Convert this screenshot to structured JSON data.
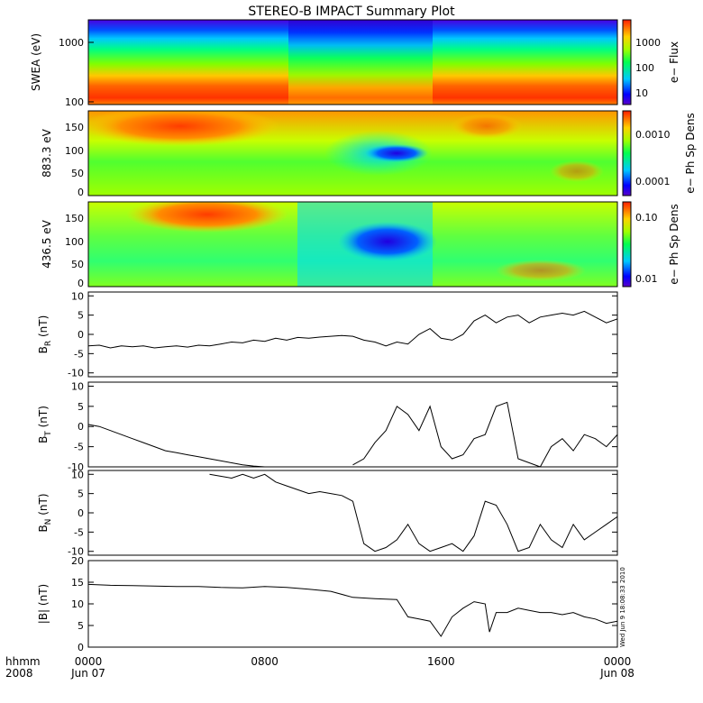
{
  "chart_data": {
    "title": "STEREO-B IMPACT Summary Plot",
    "type": "multi-panel",
    "x_axis": {
      "label_line1": "hhmm",
      "label_line2": "2008",
      "range_hours": [
        0,
        24
      ],
      "ticks": [
        {
          "hour": 0,
          "line1": "0000",
          "line2": "Jun 07"
        },
        {
          "hour": 8,
          "line1": "0800",
          "line2": ""
        },
        {
          "hour": 16,
          "line1": "1600",
          "line2": ""
        },
        {
          "hour": 24,
          "line1": "0000",
          "line2": "Jun 08"
        }
      ]
    },
    "timestamp": "Wed Jun 9 18:08:33 2010",
    "panels": [
      {
        "id": "swea",
        "type": "heatmap",
        "ylabel": "SWEA (eV)",
        "yscale": "log",
        "ylim": [
          100,
          2000
        ],
        "yticks": [
          "1000",
          "100"
        ],
        "colorbar_label": "e− Flux",
        "colorbar_ticks": [
          "1000",
          "100",
          "10"
        ],
        "description_bands": "high flux (red) below ~200 eV, green ~400-800 eV, blue above ~1500 eV; reduced flux between 08:00 and 15:30"
      },
      {
        "id": "pad883",
        "type": "heatmap",
        "ylabel": "883.3 eV",
        "ylim": [
          0,
          180
        ],
        "yticks": [
          "150",
          "100",
          "50",
          "0"
        ],
        "colorbar_label": "e− Ph Sp Dens",
        "colorbar_ticks": [
          "0.0010",
          "0.0001"
        ]
      },
      {
        "id": "pad436",
        "type": "heatmap",
        "ylabel": "436.5 eV",
        "ylim": [
          0,
          180
        ],
        "yticks": [
          "150",
          "100",
          "50",
          "0"
        ],
        "colorbar_label": "e− Ph Sp Dens",
        "colorbar_ticks": [
          "0.10",
          "0.01"
        ]
      },
      {
        "id": "br",
        "type": "line",
        "ylabel_main": "B",
        "ylabel_sub": "R",
        "ylabel_unit": " (nT)",
        "ylim": [
          -11,
          11
        ],
        "yticks": [
          10,
          5,
          0,
          -5,
          -10
        ],
        "x_hours": [
          0,
          0.5,
          1,
          1.5,
          2,
          2.5,
          3,
          3.5,
          4,
          4.5,
          5,
          5.5,
          6,
          6.5,
          7,
          7.5,
          8,
          8.5,
          9,
          9.5,
          10,
          10.5,
          11,
          11.5,
          12,
          12.5,
          13,
          13.5,
          14,
          14.5,
          15,
          15.5,
          16,
          16.5,
          17,
          17.5,
          18,
          18.5,
          19,
          19.5,
          20,
          20.5,
          21,
          21.5,
          22,
          22.5,
          23,
          23.5,
          24
        ],
        "values": [
          -3,
          -2.8,
          -3.5,
          -3,
          -3.2,
          -3,
          -3.5,
          -3.2,
          -3,
          -3.3,
          -2.8,
          -3,
          -2.5,
          -2,
          -2.2,
          -1.5,
          -1.8,
          -1,
          -1.5,
          -0.8,
          -1,
          -0.7,
          -0.5,
          -0.3,
          -0.5,
          -1.5,
          -2,
          -3,
          -2,
          -2.5,
          0,
          1.5,
          -1,
          -1.5,
          0,
          3.5,
          5,
          3,
          4.5,
          5,
          3,
          4.5,
          5,
          5.5,
          5,
          6,
          4.5,
          3,
          4
        ]
      },
      {
        "id": "bt",
        "type": "line",
        "ylabel_main": "B",
        "ylabel_sub": "T",
        "ylabel_unit": " (nT)",
        "ylim": [
          -10,
          11
        ],
        "yticks": [
          10,
          5,
          0,
          -5,
          -10
        ],
        "x_hours": [
          0,
          0.5,
          1,
          1.5,
          2,
          2.5,
          3,
          3.5,
          4,
          4.5,
          5,
          5.5,
          6,
          6.5,
          7,
          7.5,
          8,
          12,
          12.5,
          13,
          13.5,
          14,
          14.5,
          15,
          15.5,
          16,
          16.5,
          17,
          17.5,
          18,
          18.5,
          19,
          19.5,
          20,
          20.5,
          21,
          21.5,
          22,
          22.5,
          23,
          23.5,
          24
        ],
        "values": [
          0.5,
          0,
          -1,
          -2,
          -3,
          -4,
          -5,
          -6,
          -6.5,
          -7,
          -7.5,
          -8,
          -8.5,
          -9,
          -9.5,
          -9.8,
          -10,
          -9.5,
          -8,
          -4,
          -1,
          5,
          3,
          -1,
          5,
          -5,
          -8,
          -7,
          -3,
          -2,
          5,
          6,
          -8,
          -9,
          -10,
          -5,
          -3,
          -6,
          -2,
          -3,
          -5,
          -2
        ]
      },
      {
        "id": "bn",
        "type": "line",
        "ylabel_main": "B",
        "ylabel_sub": "N",
        "ylabel_unit": " (nT)",
        "ylim": [
          -11,
          11
        ],
        "yticks": [
          10,
          5,
          0,
          -5,
          -10
        ],
        "x_hours": [
          5.5,
          6,
          6.5,
          7,
          7.5,
          8,
          8.5,
          9,
          9.5,
          10,
          10.5,
          11,
          11.5,
          12,
          12.5,
          13,
          13.5,
          14,
          14.5,
          15,
          15.5,
          16,
          16.5,
          17,
          17.5,
          18,
          18.5,
          19,
          19.5,
          20,
          20.5,
          21,
          21.5,
          22,
          22.5,
          23,
          23.5,
          24
        ],
        "values": [
          10,
          9.5,
          9,
          10,
          9,
          10,
          8,
          7,
          6,
          5,
          5.5,
          5,
          4.5,
          3,
          -8,
          -10,
          -9,
          -7,
          -3,
          -8,
          -10,
          -9,
          -8,
          -10,
          -6,
          3,
          2,
          -3,
          -10,
          -9,
          -3,
          -7,
          -9,
          -3,
          -7,
          -5,
          -3,
          -1
        ]
      },
      {
        "id": "bmag",
        "type": "line",
        "ylabel": "|B| (nT)",
        "ylim": [
          0,
          20
        ],
        "yticks": [
          20,
          15,
          10,
          5,
          0
        ],
        "x_hours": [
          0,
          1,
          2,
          3,
          4,
          5,
          6,
          7,
          8,
          9,
          10,
          11,
          12,
          13,
          14,
          14.5,
          15,
          15.5,
          16,
          16.5,
          17,
          17.5,
          18,
          18.2,
          18.5,
          19,
          19.5,
          20,
          20.5,
          21,
          21.5,
          22,
          22.5,
          23,
          23.5,
          24
        ],
        "values": [
          14.5,
          14.3,
          14.2,
          14.1,
          14,
          14,
          13.8,
          13.7,
          14,
          13.8,
          13.4,
          12.9,
          11.5,
          11.2,
          11,
          7,
          6.5,
          6,
          2.5,
          7,
          9,
          10.5,
          10,
          3.5,
          8,
          8,
          9,
          8.5,
          8,
          8,
          7.5,
          8,
          7,
          6.5,
          5.5,
          6
        ]
      }
    ]
  }
}
